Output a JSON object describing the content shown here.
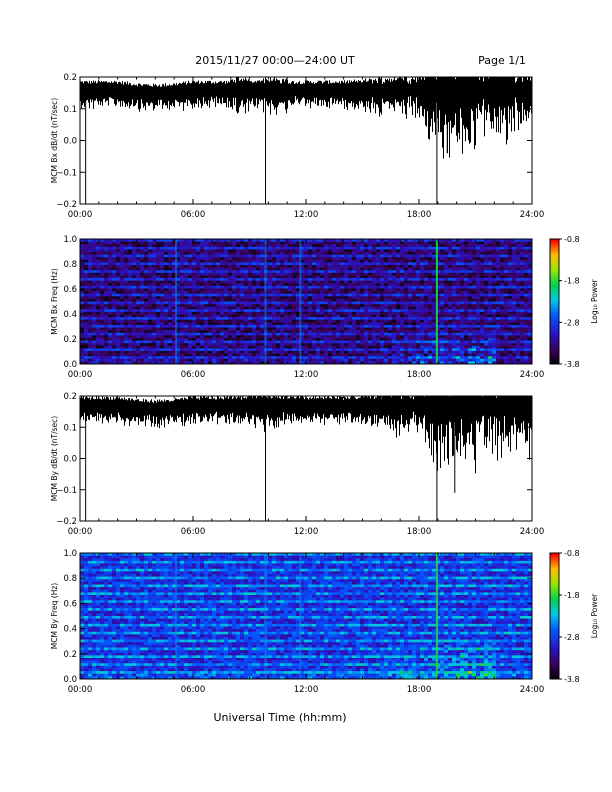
{
  "header": {
    "title": "2015/11/27  00:00—24:00 UT",
    "page": "Page 1/1"
  },
  "footer": {
    "xlabel": "Universal Time (hh:mm)"
  },
  "chart_data": [
    {
      "type": "line",
      "ylabel": "MCM Bx dB/dt (nT/sec)",
      "xticks": [
        "00:00",
        "06:00",
        "12:00",
        "18:00",
        "24:00"
      ],
      "xlim_hours": [
        0,
        24
      ],
      "ylim": [
        -0.2,
        0.2
      ],
      "yticks": [
        "0.2",
        "0.1",
        "0.0",
        "−0.1",
        "−0.2"
      ],
      "baseline": 0.16,
      "spikes_down": [
        {
          "x": 0.3,
          "y": -0.2
        },
        {
          "x": 9.85,
          "y": -0.2
        },
        {
          "x": 18.95,
          "y": -0.2
        },
        {
          "x": 19.5,
          "y": -0.04
        }
      ]
    },
    {
      "type": "heatmap",
      "ylabel": "MCM Bx Freq (Hz)",
      "xticks": [
        "00:00",
        "06:00",
        "12:00",
        "18:00",
        "24:00"
      ],
      "xlim_hours": [
        0,
        24
      ],
      "ylim": [
        0,
        1.0
      ],
      "yticks": [
        "1.0",
        "0.8",
        "0.6",
        "0.4",
        "0.2",
        "0.0"
      ],
      "colorbar": {
        "label": "Log₁₀ Power",
        "ticks": [
          "-0.8",
          "-1.8",
          "-2.8",
          "-3.8"
        ],
        "range": [
          -3.8,
          -0.8
        ]
      },
      "background_level": -3.4,
      "vertical_lines_hours": [
        5.1,
        9.85,
        11.7,
        18.95
      ]
    },
    {
      "type": "line",
      "ylabel": "MCM By dB/dt (nT/sec)",
      "xticks": [
        "00:00",
        "06:00",
        "12:00",
        "18:00",
        "24:00"
      ],
      "xlim_hours": [
        0,
        24
      ],
      "ylim": [
        -0.2,
        0.2
      ],
      "yticks": [
        "0.2",
        "0.1",
        "0.0",
        "−0.1",
        "−0.2"
      ],
      "baseline": 0.17,
      "spikes_down": [
        {
          "x": 0.3,
          "y": -0.2
        },
        {
          "x": 9.85,
          "y": -0.2
        },
        {
          "x": 18.95,
          "y": -0.2
        },
        {
          "x": 19.9,
          "y": -0.11
        }
      ]
    },
    {
      "type": "heatmap",
      "ylabel": "MCM By Freq (Hz)",
      "xticks": [
        "00:00",
        "06:00",
        "12:00",
        "18:00",
        "24:00"
      ],
      "xlim_hours": [
        0,
        24
      ],
      "ylim": [
        0,
        1.0
      ],
      "yticks": [
        "1.0",
        "0.8",
        "0.6",
        "0.4",
        "0.2",
        "0.0"
      ],
      "colorbar": {
        "label": "Log₁₀ Power",
        "ticks": [
          "-0.8",
          "-1.8",
          "-2.8",
          "-3.8"
        ],
        "range": [
          -3.8,
          -0.8
        ]
      },
      "background_level": -2.9,
      "vertical_lines_hours": [
        5.1,
        9.85,
        11.7,
        18.95
      ]
    }
  ]
}
